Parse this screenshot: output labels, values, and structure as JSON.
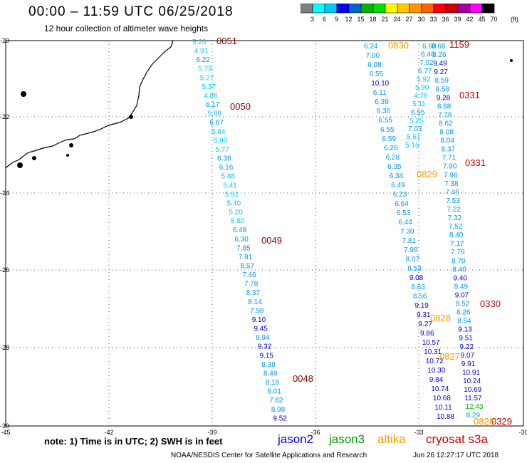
{
  "title": "00:00 – 11:59 UTC 06/25/2018",
  "subtitle": "12 hour collection of altimeter wave heights",
  "colorbar": {
    "units": "(ft)",
    "ticks": [
      "3",
      "6",
      "9",
      "12",
      "15",
      "18",
      "21",
      "24",
      "27",
      "30",
      "33",
      "36",
      "39",
      "42",
      "45",
      "70"
    ],
    "colors": [
      "#7f7f7f",
      "#00ffff",
      "#00c8ff",
      "#0000ff",
      "#0064c8",
      "#00b400",
      "#00e000",
      "#ffff00",
      "#ffc800",
      "#ff9600",
      "#ff6400",
      "#ff0000",
      "#c80000",
      "#a000a0",
      "#ff00ff",
      "#000000"
    ]
  },
  "axes": {
    "x_ticks": [
      "-45",
      "-42",
      "-39",
      "-36",
      "-33",
      "-30"
    ],
    "y_ticks": [
      "-20",
      "-22",
      "-24",
      "-26",
      "-28",
      "-30"
    ]
  },
  "time_labels": [
    {
      "text": "0051",
      "color": "#800000"
    },
    {
      "text": "0050",
      "color": "#800000"
    },
    {
      "text": "0049",
      "color": "#800000"
    },
    {
      "text": "0048",
      "color": "#800000"
    },
    {
      "text": "0830",
      "color": "#ff9900"
    },
    {
      "text": "0829",
      "color": "#ff9900"
    },
    {
      "text": "0828",
      "color": "#ff9900"
    },
    {
      "text": "0827",
      "color": "#ff9900"
    },
    {
      "text": "1159",
      "color": "#cc0000"
    },
    {
      "text": "0331",
      "color": "#cc0000"
    },
    {
      "text": "0331",
      "color": "#cc0000"
    },
    {
      "text": "0330",
      "color": "#cc0000"
    },
    {
      "text": "0329",
      "color": "#cc0000"
    },
    {
      "text": "0826",
      "color": "#ff9900"
    }
  ],
  "tracks": {
    "track_1": [
      "5.20",
      "4.91",
      "6.22",
      "5.73",
      "5.27",
      "5.37",
      "4.86",
      "6.17",
      "5.88",
      "6.67",
      "5.84",
      "5.90",
      "5.77",
      "6.38",
      "6.16",
      "5.88",
      "5.41",
      "5.81",
      "5.40",
      "5.20",
      "5.80",
      "6.48",
      "6.30",
      "7.85",
      "7.91",
      "8.57",
      "7.46",
      "7.78",
      "8.37",
      "8.14",
      "7.98",
      "9.10",
      "9.45",
      "8.94",
      "9.32",
      "9.15",
      "8.38",
      "8.49",
      "8.16",
      "8.01",
      "7.82",
      "8.98",
      "9.52"
    ],
    "track_2": [
      "6.24",
      "7.00",
      "6.08",
      "6.55",
      "10.10",
      "6.11",
      "6.39",
      "6.36",
      "6.55",
      "6.55",
      "6.59",
      "6.26",
      "6.28",
      "6.35",
      "6.34",
      "6.49",
      "6.23",
      "6.64",
      "6.53",
      "6.44",
      "7.30",
      "7.81",
      "7.98",
      "8.07",
      "8.53",
      "9.08",
      "8.83",
      "8.56",
      "9.19",
      "9.31",
      "9.27",
      "9.86",
      "10.57",
      "10.31",
      "10.72",
      "10.30",
      "9.84",
      "10.74",
      "10.68",
      "10.11",
      "10.88"
    ],
    "track_3": [
      "6.60",
      "6.46",
      "7.02",
      "6.77",
      "5.92",
      "5.90",
      "4.78",
      "5.11",
      "6.55",
      "5.25",
      "7.03",
      "5.61",
      "5.16"
    ],
    "track_4": [
      "8.66",
      "8.26",
      "9.49",
      "9.27",
      "8.59",
      "8.58",
      "9.28",
      "8.88",
      "7.78",
      "8.62",
      "8.08",
      "8.04",
      "8.37",
      "7.71",
      "7.90",
      "7.96",
      "7.38",
      "7.46",
      "7.53",
      "7.22",
      "7.32",
      "7.52",
      "8.40",
      "7.17",
      "7.76",
      "8.70",
      "8.40",
      "9.40",
      "8.49",
      "9.07",
      "8.52",
      "8.26",
      "8.54",
      "9.13",
      "9.51",
      "9.22",
      "9.07",
      "9.91",
      "10.91",
      "10.24",
      "10.69",
      "11.57",
      "12.43",
      "8.29"
    ]
  },
  "note": "note: 1) Time is in UTC; 2) SWH is in feet",
  "legend": {
    "jason2": "jason2",
    "jason2_color": "#0000ff",
    "jason3": "jason3",
    "jason3_color": "#00a000",
    "altika": "altika",
    "altika_color": "#ff9900",
    "cryosat": "cryosat s3a",
    "cryosat_color": "#cc0000"
  },
  "credit": "NOAA/NESDIS Center for Satellite Applications and Research",
  "timestamp": "Jun 26 12:27:17 UTC 2018"
}
